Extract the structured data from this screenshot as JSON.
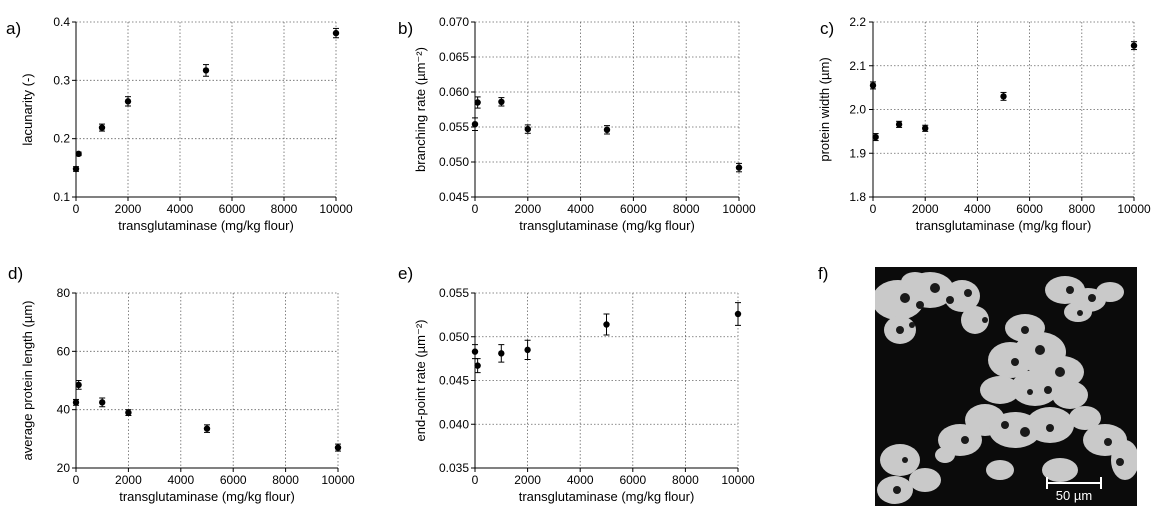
{
  "figure": {
    "scale_bar_label": "50 µm"
  },
  "chart_data": [
    {
      "panel_label": "a)",
      "type": "scatter",
      "xlabel": "transglutaminase (mg/kg flour)",
      "ylabel": "lacunarity (-)",
      "xlim": [
        0,
        10000
      ],
      "ylim": [
        0.1,
        0.4
      ],
      "xticks": [
        0,
        2000,
        4000,
        6000,
        8000,
        10000
      ],
      "yticks": [
        0.1,
        0.2,
        0.3,
        0.4
      ],
      "ytick_labels": [
        "0.1",
        "0.2",
        "0.3",
        "0.4"
      ],
      "grid": true,
      "points": [
        {
          "x": 0,
          "y": 0.148,
          "err": 0.004
        },
        {
          "x": 100,
          "y": 0.174,
          "err": 0.003
        },
        {
          "x": 1000,
          "y": 0.219,
          "err": 0.006
        },
        {
          "x": 2000,
          "y": 0.264,
          "err": 0.008
        },
        {
          "x": 5000,
          "y": 0.317,
          "err": 0.01
        },
        {
          "x": 10000,
          "y": 0.381,
          "err": 0.008
        }
      ]
    },
    {
      "panel_label": "b)",
      "type": "scatter",
      "xlabel": "transglutaminase (mg/kg flour)",
      "ylabel": "branching rate (µm⁻²)",
      "xlim": [
        0,
        10000
      ],
      "ylim": [
        0.045,
        0.07
      ],
      "xticks": [
        0,
        2000,
        4000,
        6000,
        8000,
        10000
      ],
      "yticks": [
        0.045,
        0.05,
        0.055,
        0.06,
        0.065,
        0.07
      ],
      "ytick_labels": [
        "0.045",
        "0.050",
        "0.055",
        "0.060",
        "0.065",
        "0.070"
      ],
      "grid": true,
      "points": [
        {
          "x": 0,
          "y": 0.0554,
          "err": 0.0009
        },
        {
          "x": 100,
          "y": 0.0585,
          "err": 0.0008
        },
        {
          "x": 1000,
          "y": 0.0586,
          "err": 0.0006
        },
        {
          "x": 2000,
          "y": 0.0547,
          "err": 0.0006
        },
        {
          "x": 5000,
          "y": 0.0546,
          "err": 0.0006
        },
        {
          "x": 10000,
          "y": 0.0492,
          "err": 0.0006
        }
      ]
    },
    {
      "panel_label": "c)",
      "type": "scatter",
      "xlabel": "transglutaminase (mg/kg flour)",
      "ylabel": "protein width (µm)",
      "xlim": [
        0,
        10000
      ],
      "ylim": [
        1.8,
        2.2
      ],
      "xticks": [
        0,
        2000,
        4000,
        6000,
        8000,
        10000
      ],
      "yticks": [
        1.8,
        1.9,
        2.0,
        2.1,
        2.2
      ],
      "ytick_labels": [
        "1.8",
        "1.9",
        "2.0",
        "2.1",
        "2.2"
      ],
      "grid": true,
      "points": [
        {
          "x": 0,
          "y": 2.055,
          "err": 0.008
        },
        {
          "x": 100,
          "y": 1.937,
          "err": 0.008
        },
        {
          "x": 1000,
          "y": 1.966,
          "err": 0.007
        },
        {
          "x": 2000,
          "y": 1.957,
          "err": 0.007
        },
        {
          "x": 5000,
          "y": 2.03,
          "err": 0.009
        },
        {
          "x": 10000,
          "y": 2.146,
          "err": 0.009
        }
      ]
    },
    {
      "panel_label": "d)",
      "type": "scatter",
      "xlabel": "transglutaminase (mg/kg flour)",
      "ylabel": "average protein length (µm)",
      "xlim": [
        0,
        10000
      ],
      "ylim": [
        20,
        80
      ],
      "xticks": [
        0,
        2000,
        4000,
        6000,
        8000,
        10000
      ],
      "yticks": [
        20,
        40,
        60,
        80
      ],
      "ytick_labels": [
        "20",
        "40",
        "60",
        "80"
      ],
      "grid": true,
      "points": [
        {
          "x": 0,
          "y": 42.5,
          "err": 1.0
        },
        {
          "x": 100,
          "y": 48.5,
          "err": 1.5
        },
        {
          "x": 1000,
          "y": 42.5,
          "err": 1.5
        },
        {
          "x": 2000,
          "y": 39.0,
          "err": 1.0
        },
        {
          "x": 5000,
          "y": 33.5,
          "err": 1.3
        },
        {
          "x": 10000,
          "y": 27.0,
          "err": 1.2
        }
      ]
    },
    {
      "panel_label": "e)",
      "type": "scatter",
      "xlabel": "transglutaminase (mg/kg flour)",
      "ylabel": "end-point rate (µm⁻²)",
      "xlim": [
        0,
        10000
      ],
      "ylim": [
        0.035,
        0.055
      ],
      "xticks": [
        0,
        2000,
        4000,
        6000,
        8000,
        10000
      ],
      "yticks": [
        0.035,
        0.04,
        0.045,
        0.05,
        0.055
      ],
      "ytick_labels": [
        "0.035",
        "0.040",
        "0.045",
        "0.050",
        "0.055"
      ],
      "grid": true,
      "points": [
        {
          "x": 0,
          "y": 0.0483,
          "err": 0.0008
        },
        {
          "x": 100,
          "y": 0.0467,
          "err": 0.0008
        },
        {
          "x": 1000,
          "y": 0.0481,
          "err": 0.001
        },
        {
          "x": 2000,
          "y": 0.0485,
          "err": 0.0011
        },
        {
          "x": 5000,
          "y": 0.0514,
          "err": 0.0012
        },
        {
          "x": 10000,
          "y": 0.0526,
          "err": 0.0013
        }
      ]
    }
  ],
  "image_panel": {
    "panel_label": "f)"
  }
}
